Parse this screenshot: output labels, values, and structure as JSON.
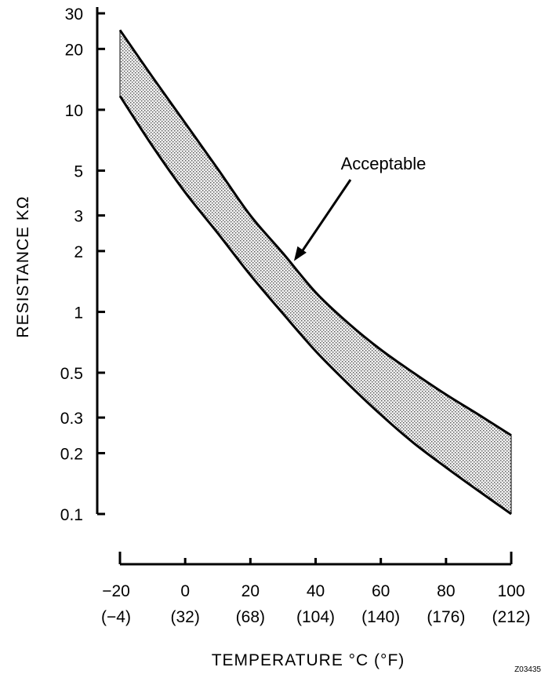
{
  "chart_data": {
    "type": "area",
    "xlabel": "TEMPERATURE °C (°F)",
    "ylabel": "RESISTANCE KΩ",
    "y_scale": "log",
    "xlim": [
      -20,
      100
    ],
    "ylim": [
      0.1,
      30
    ],
    "x_ticks": [
      {
        "value": -20,
        "label": "−20",
        "sublabel": "(−4)"
      },
      {
        "value": 0,
        "label": "0",
        "sublabel": "(32)"
      },
      {
        "value": 20,
        "label": "20",
        "sublabel": "(68)"
      },
      {
        "value": 40,
        "label": "40",
        "sublabel": "(104)"
      },
      {
        "value": 60,
        "label": "60",
        "sublabel": "(140)"
      },
      {
        "value": 80,
        "label": "80",
        "sublabel": "(176)"
      },
      {
        "value": 100,
        "label": "100",
        "sublabel": "(212)"
      }
    ],
    "y_ticks": [
      {
        "value": 30,
        "label": "30"
      },
      {
        "value": 20,
        "label": "20"
      },
      {
        "value": 10,
        "label": "10"
      },
      {
        "value": 5,
        "label": "5"
      },
      {
        "value": 3,
        "label": "3"
      },
      {
        "value": 2,
        "label": "2"
      },
      {
        "value": 1,
        "label": "1"
      },
      {
        "value": 0.5,
        "label": "0.5"
      },
      {
        "value": 0.3,
        "label": "0.3"
      },
      {
        "value": 0.2,
        "label": "0.2"
      },
      {
        "value": 0.1,
        "label": "0.1"
      }
    ],
    "series": [
      {
        "name": "",
        "x": [
          -20,
          -10,
          0,
          10,
          20,
          30,
          40,
          50,
          60,
          70,
          80,
          90,
          100
        ],
        "values": [
          24.8,
          14.5,
          8.6,
          5.1,
          3.0,
          1.95,
          1.25,
          0.88,
          0.65,
          0.5,
          0.39,
          0.31,
          0.245
        ]
      },
      {
        "name": "",
        "x": [
          -20,
          -10,
          0,
          10,
          20,
          30,
          40,
          50,
          60,
          70,
          80,
          90,
          100
        ],
        "values": [
          11.7,
          6.6,
          3.9,
          2.45,
          1.52,
          0.98,
          0.64,
          0.44,
          0.31,
          0.225,
          0.17,
          0.13,
          0.1
        ]
      }
    ],
    "fill_between": true,
    "grid": false,
    "annotations": [
      {
        "text": "Acceptable",
        "points_to": {
          "x": 30,
          "y": 1.9
        }
      }
    ],
    "figure_id": "Z03435"
  }
}
